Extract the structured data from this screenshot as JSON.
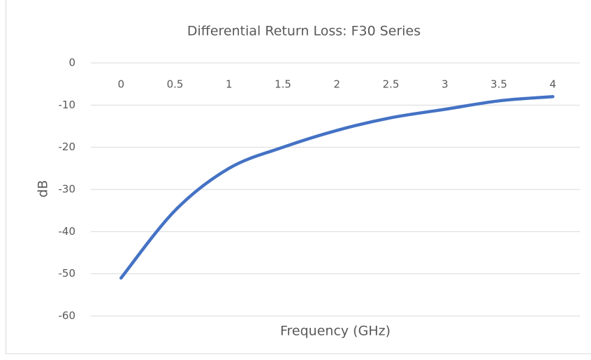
{
  "chart_data": {
    "type": "line",
    "title": "Differential Return Loss: F30 Series",
    "x_label": "Frequency (GHz)",
    "y_label": "dB",
    "x": [
      0,
      0.5,
      1,
      1.5,
      2,
      2.5,
      3,
      3.5,
      4
    ],
    "series": [
      {
        "name": "F30 Series",
        "color": "#4472c4",
        "values": [
          -51,
          -35,
          -25,
          -20,
          -16,
          -13,
          -11,
          -9,
          -8
        ]
      }
    ],
    "xlim": [
      -0.28,
      4.25
    ],
    "xticks": [
      0,
      0.5,
      1,
      1.5,
      2,
      2.5,
      3,
      3.5,
      4
    ],
    "ylim": [
      -60,
      0
    ],
    "yticks": [
      -60,
      -50,
      -40,
      -30,
      -20,
      -10,
      0
    ],
    "grid": true,
    "smooth": true
  }
}
